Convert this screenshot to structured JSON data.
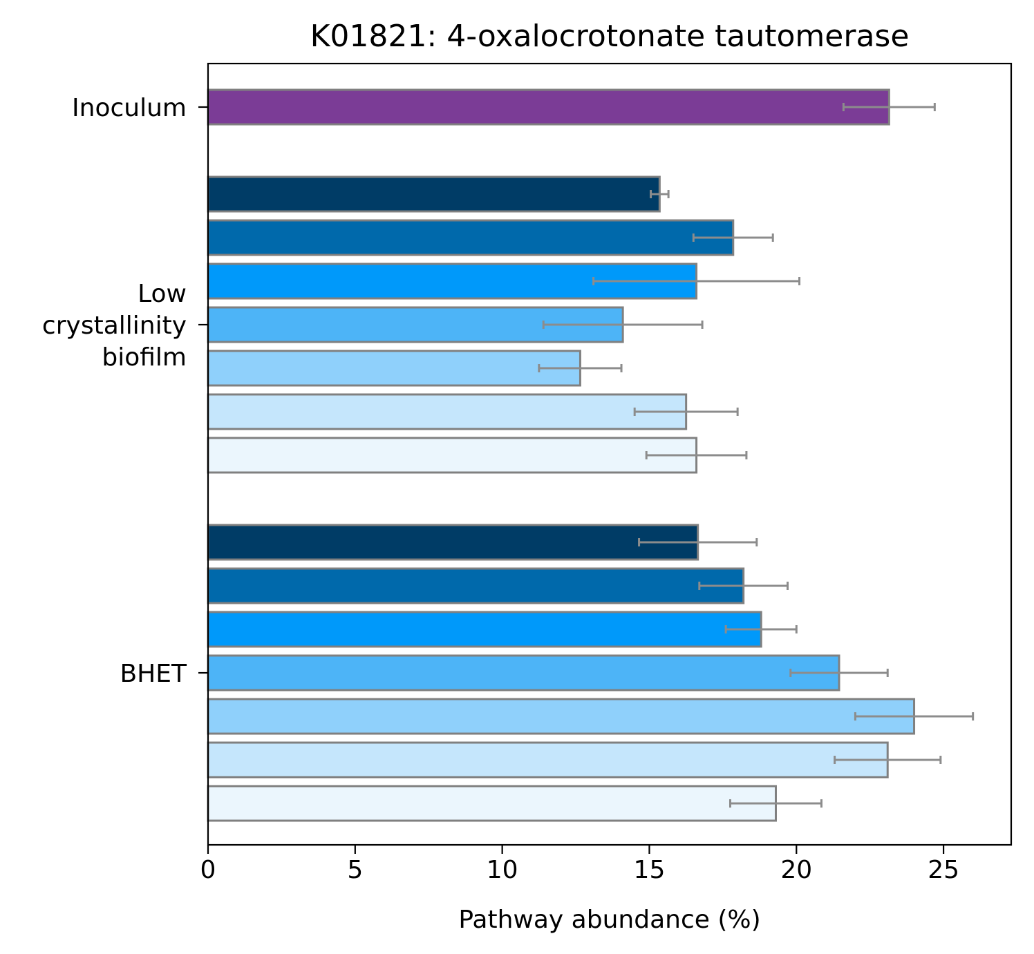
{
  "chart_data": {
    "type": "bar",
    "orientation": "horizontal",
    "title": "K01821: 4-oxalocrotonate tautomerase",
    "xlabel": "Pathway abundance (%)",
    "ylabel": "",
    "xlim": [
      0,
      27.3
    ],
    "xticks": [
      "0",
      "5",
      "10",
      "15",
      "20",
      "25"
    ],
    "grid": false,
    "groups": [
      {
        "label_lines": [
          "Inoculum"
        ],
        "bars": [
          {
            "value": 23.15,
            "err": 1.55,
            "color": "#7b3c96"
          }
        ]
      },
      {
        "label_lines": [
          "Low",
          "crystallinity",
          "biofilm"
        ],
        "bars": [
          {
            "value": 15.35,
            "err": 0.3,
            "color": "#003c66"
          },
          {
            "value": 17.85,
            "err": 1.35,
            "color": "#0069ab"
          },
          {
            "value": 16.6,
            "err": 3.5,
            "color": "#0099fa"
          },
          {
            "value": 14.1,
            "err": 2.7,
            "color": "#4db4f7"
          },
          {
            "value": 12.65,
            "err": 1.4,
            "color": "#8fd0fb"
          },
          {
            "value": 16.25,
            "err": 1.75,
            "color": "#c5e6fc"
          },
          {
            "value": 16.6,
            "err": 1.7,
            "color": "#ebf6fd"
          }
        ]
      },
      {
        "label_lines": [
          "BHET"
        ],
        "bars": [
          {
            "value": 16.65,
            "err": 2.0,
            "color": "#003c66"
          },
          {
            "value": 18.2,
            "err": 1.5,
            "color": "#0069ab"
          },
          {
            "value": 18.8,
            "err": 1.2,
            "color": "#0099fa"
          },
          {
            "value": 21.45,
            "err": 1.65,
            "color": "#4db4f7"
          },
          {
            "value": 24.0,
            "err": 2.0,
            "color": "#8fd0fb"
          },
          {
            "value": 23.1,
            "err": 1.8,
            "color": "#c5e6fc"
          },
          {
            "value": 19.3,
            "err": 1.55,
            "color": "#ebf6fd"
          }
        ]
      }
    ],
    "bar_edge_color": "#808080",
    "error_bar_color": "#8c8c8c"
  }
}
